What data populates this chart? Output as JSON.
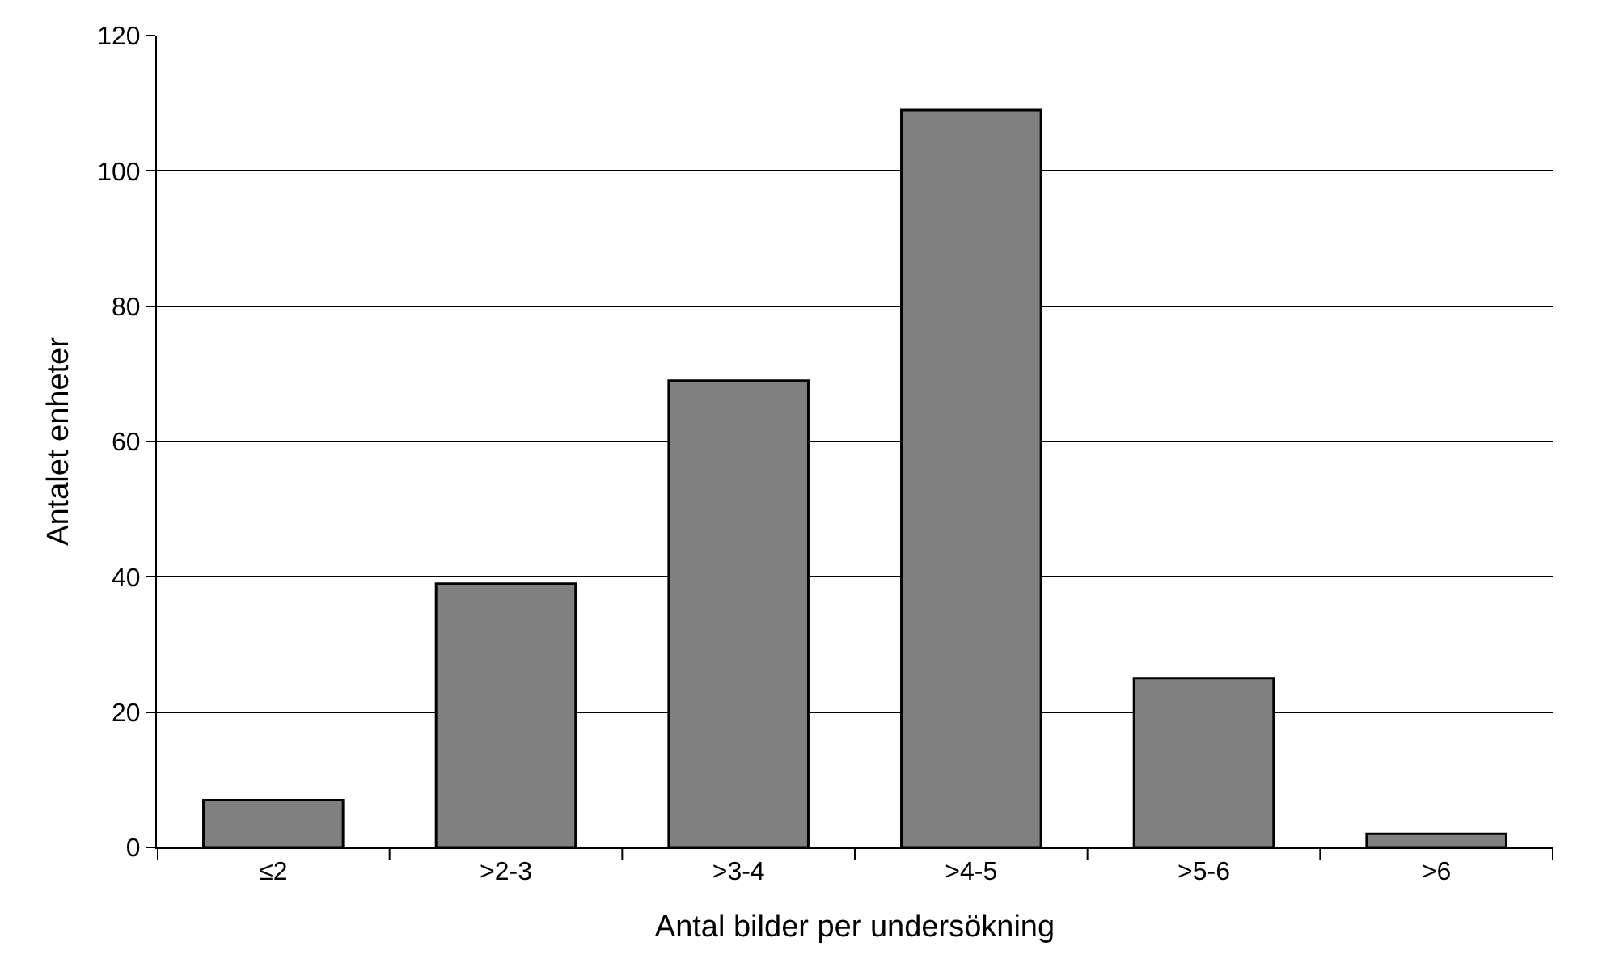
{
  "chart_data": {
    "type": "bar",
    "xlabel": "Antal bilder per undersökning",
    "ylabel": "Antalet enheter",
    "categories": [
      "≤2",
      ">2-3",
      ">3-4",
      ">4-5",
      ">5-6",
      ">6"
    ],
    "values": [
      7,
      39,
      69,
      109,
      25,
      2
    ],
    "color": "#808080",
    "ylim": [
      0,
      120
    ],
    "yticks": [
      0,
      20,
      40,
      60,
      80,
      100,
      120
    ],
    "grid": "y",
    "legend": false
  }
}
